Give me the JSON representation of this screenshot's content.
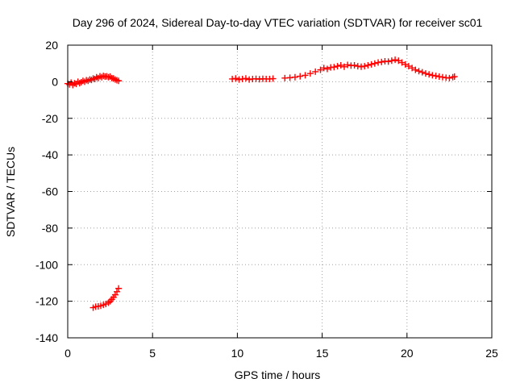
{
  "chart_data": {
    "type": "scatter",
    "title": "Day 296 of 2024, Sidereal Day-to-day VTEC variation (SDTVAR) for receiver sc01",
    "xlabel": "GPS time / hours",
    "ylabel": "SDTVAR / TECUs",
    "xlim": [
      0,
      25
    ],
    "ylim": [
      -140,
      20
    ],
    "xticks": [
      0,
      5,
      10,
      15,
      20,
      25
    ],
    "yticks": [
      20,
      0,
      -20,
      -40,
      -60,
      -80,
      -100,
      -120,
      -140
    ],
    "grid": true,
    "marker": "plus",
    "series": [
      {
        "name": "sc01",
        "color": "#ff0000",
        "points": [
          [
            0.0,
            -1.0
          ],
          [
            0.1,
            -1.5
          ],
          [
            0.2,
            -0.5
          ],
          [
            0.3,
            -1.8
          ],
          [
            0.4,
            -0.8
          ],
          [
            0.5,
            -1.2
          ],
          [
            0.6,
            0.0
          ],
          [
            0.7,
            -0.8
          ],
          [
            0.8,
            -0.3
          ],
          [
            0.9,
            0.5
          ],
          [
            1.0,
            0.0
          ],
          [
            1.1,
            0.8
          ],
          [
            1.2,
            0.5
          ],
          [
            1.3,
            1.2
          ],
          [
            1.4,
            1.0
          ],
          [
            1.5,
            1.8
          ],
          [
            1.6,
            1.5
          ],
          [
            1.7,
            2.5
          ],
          [
            1.8,
            2.0
          ],
          [
            1.9,
            3.0
          ],
          [
            2.0,
            2.5
          ],
          [
            2.1,
            3.2
          ],
          [
            2.2,
            2.8
          ],
          [
            2.3,
            3.0
          ],
          [
            2.4,
            2.5
          ],
          [
            2.5,
            2.8
          ],
          [
            2.6,
            2.0
          ],
          [
            2.7,
            1.8
          ],
          [
            2.8,
            1.2
          ],
          [
            2.9,
            0.8
          ],
          [
            3.0,
            0.5
          ],
          [
            1.5,
            -123.5
          ],
          [
            1.65,
            -123.0
          ],
          [
            1.8,
            -122.8
          ],
          [
            1.95,
            -122.5
          ],
          [
            2.1,
            -122.0
          ],
          [
            2.25,
            -121.5
          ],
          [
            2.4,
            -120.8
          ],
          [
            2.5,
            -120.0
          ],
          [
            2.6,
            -119.0
          ],
          [
            2.7,
            -117.8
          ],
          [
            2.8,
            -116.5
          ],
          [
            2.9,
            -114.8
          ],
          [
            3.0,
            -113.0
          ],
          [
            9.7,
            1.5
          ],
          [
            9.9,
            1.8
          ],
          [
            10.1,
            1.2
          ],
          [
            10.3,
            1.5
          ],
          [
            10.5,
            1.8
          ],
          [
            10.7,
            1.2
          ],
          [
            10.9,
            1.5
          ],
          [
            11.1,
            1.6
          ],
          [
            11.3,
            1.4
          ],
          [
            11.5,
            1.6
          ],
          [
            11.7,
            1.5
          ],
          [
            11.9,
            1.5
          ],
          [
            12.1,
            1.7
          ],
          [
            12.8,
            2.0
          ],
          [
            13.1,
            2.2
          ],
          [
            13.4,
            2.5
          ],
          [
            13.7,
            3.0
          ],
          [
            14.0,
            3.5
          ],
          [
            14.3,
            4.5
          ],
          [
            14.6,
            5.5
          ],
          [
            14.9,
            6.5
          ],
          [
            15.1,
            7.5
          ],
          [
            15.3,
            7.0
          ],
          [
            15.5,
            7.8
          ],
          [
            15.7,
            8.0
          ],
          [
            15.9,
            8.5
          ],
          [
            16.1,
            9.0
          ],
          [
            16.3,
            8.2
          ],
          [
            16.5,
            9.2
          ],
          [
            16.7,
            8.8
          ],
          [
            16.9,
            9.0
          ],
          [
            17.1,
            8.5
          ],
          [
            17.3,
            8.2
          ],
          [
            17.5,
            8.5
          ],
          [
            17.7,
            9.0
          ],
          [
            17.9,
            9.5
          ],
          [
            18.1,
            10.0
          ],
          [
            18.3,
            10.5
          ],
          [
            18.5,
            10.8
          ],
          [
            18.7,
            11.2
          ],
          [
            18.9,
            11.0
          ],
          [
            19.1,
            11.5
          ],
          [
            19.3,
            12.0
          ],
          [
            19.5,
            11.5
          ],
          [
            19.7,
            10.5
          ],
          [
            19.9,
            9.5
          ],
          [
            20.1,
            8.5
          ],
          [
            20.3,
            7.5
          ],
          [
            20.5,
            6.5
          ],
          [
            20.7,
            5.8
          ],
          [
            20.9,
            5.2
          ],
          [
            21.1,
            4.5
          ],
          [
            21.3,
            4.0
          ],
          [
            21.5,
            3.5
          ],
          [
            21.7,
            3.2
          ],
          [
            21.9,
            2.8
          ],
          [
            22.1,
            2.5
          ],
          [
            22.3,
            2.2
          ],
          [
            22.5,
            2.0
          ],
          [
            22.7,
            2.5
          ],
          [
            22.8,
            2.8
          ]
        ]
      }
    ]
  }
}
